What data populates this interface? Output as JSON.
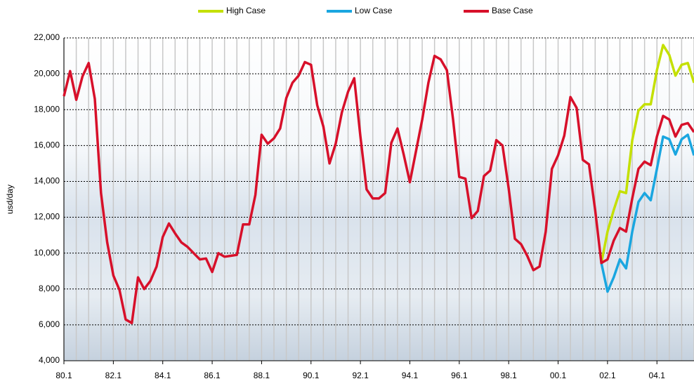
{
  "chart_data": {
    "type": "line",
    "y_label": "usd/day",
    "categories": [
      "80.1",
      null,
      null,
      null,
      null,
      null,
      null,
      null,
      "82.1",
      null,
      null,
      null,
      null,
      null,
      null,
      null,
      "84.1",
      null,
      null,
      null,
      null,
      null,
      null,
      null,
      "86.1",
      null,
      null,
      null,
      null,
      null,
      null,
      null,
      "88.1",
      null,
      null,
      null,
      null,
      null,
      null,
      null,
      "90.1",
      null,
      null,
      null,
      null,
      null,
      null,
      null,
      "92.1",
      null,
      null,
      null,
      null,
      null,
      null,
      null,
      "94.1",
      null,
      null,
      null,
      null,
      null,
      null,
      null,
      "96.1",
      null,
      null,
      null,
      null,
      null,
      null,
      null,
      "98.1",
      null,
      null,
      null,
      null,
      null,
      null,
      null,
      "00.1",
      null,
      null,
      null,
      null,
      null,
      null,
      null,
      "02.1",
      null,
      null,
      null,
      null,
      null,
      null,
      null,
      "04.1",
      null,
      null,
      null,
      null,
      null,
      null
    ],
    "series": [
      {
        "name": "High Case",
        "color": "#c4e000",
        "values": [
          null,
          null,
          null,
          null,
          null,
          null,
          null,
          null,
          null,
          null,
          null,
          null,
          null,
          null,
          null,
          null,
          null,
          null,
          null,
          null,
          null,
          null,
          null,
          null,
          null,
          null,
          null,
          null,
          null,
          null,
          null,
          null,
          null,
          null,
          null,
          null,
          null,
          null,
          null,
          null,
          null,
          null,
          null,
          null,
          null,
          null,
          null,
          null,
          null,
          null,
          null,
          null,
          null,
          null,
          null,
          null,
          null,
          null,
          null,
          null,
          null,
          null,
          null,
          null,
          null,
          null,
          null,
          null,
          null,
          null,
          null,
          null,
          null,
          null,
          null,
          null,
          null,
          null,
          null,
          null,
          null,
          null,
          null,
          null,
          null,
          null,
          null,
          9450,
          11200,
          12400,
          13450,
          13350,
          16300,
          17950,
          18300,
          18300,
          20200,
          21600,
          21050,
          19900,
          20500,
          20600,
          19500
        ]
      },
      {
        "name": "Low Case",
        "color": "#1aa6e0",
        "values": [
          null,
          null,
          null,
          null,
          null,
          null,
          null,
          null,
          null,
          null,
          null,
          null,
          null,
          null,
          null,
          null,
          null,
          null,
          null,
          null,
          null,
          null,
          null,
          null,
          null,
          null,
          null,
          null,
          null,
          null,
          null,
          null,
          null,
          null,
          null,
          null,
          null,
          null,
          null,
          null,
          null,
          null,
          null,
          null,
          null,
          null,
          null,
          null,
          null,
          null,
          null,
          null,
          null,
          null,
          null,
          null,
          null,
          null,
          null,
          null,
          null,
          null,
          null,
          null,
          null,
          null,
          null,
          null,
          null,
          null,
          null,
          null,
          null,
          null,
          null,
          null,
          null,
          null,
          null,
          null,
          null,
          null,
          null,
          null,
          null,
          null,
          null,
          9450,
          7850,
          8650,
          9650,
          9150,
          11200,
          12850,
          13350,
          12950,
          14700,
          16500,
          16350,
          15500,
          16350,
          16600,
          15450
        ]
      },
      {
        "name": "Base Case",
        "color": "#d7102a",
        "values": [
          18750,
          20150,
          18550,
          19850,
          20600,
          18600,
          13350,
          10600,
          8750,
          7950,
          6300,
          6100,
          8650,
          8000,
          8450,
          9250,
          10900,
          11650,
          11100,
          10600,
          10350,
          10000,
          9650,
          9700,
          8950,
          10000,
          9800,
          9850,
          9900,
          11600,
          11600,
          13250,
          16600,
          16100,
          16400,
          16950,
          18650,
          19500,
          19900,
          20650,
          20500,
          18250,
          17050,
          15000,
          16100,
          17850,
          19000,
          19750,
          16500,
          13550,
          13050,
          13050,
          13350,
          16150,
          16950,
          15500,
          13950,
          15700,
          17450,
          19500,
          21000,
          20800,
          20200,
          17450,
          14250,
          14150,
          11950,
          12350,
          14300,
          14600,
          16300,
          16000,
          13600,
          10800,
          10500,
          9850,
          9050,
          9250,
          11200,
          14700,
          15450,
          16550,
          18700,
          18100,
          15200,
          14950,
          12400,
          9450,
          9650,
          10700,
          11400,
          11200,
          13050,
          14700,
          15100,
          14900,
          16500,
          17650,
          17450,
          16500,
          17150,
          17250,
          16750
        ]
      }
    ],
    "ylim": [
      4000,
      22000
    ],
    "yticks": [
      {
        "value": 4000,
        "label": "4,000"
      },
      {
        "value": 6000,
        "label": "6,000"
      },
      {
        "value": 8000,
        "label": "8,000"
      },
      {
        "value": 10000,
        "label": "10,000"
      },
      {
        "value": 12000,
        "label": "12,000"
      },
      {
        "value": 14000,
        "label": "14,000"
      },
      {
        "value": 16000,
        "label": "16,000"
      },
      {
        "value": 18000,
        "label": "18,000"
      },
      {
        "value": 20000,
        "label": "20,000"
      },
      {
        "value": 22000,
        "label": "22,000"
      }
    ],
    "grid": true
  }
}
